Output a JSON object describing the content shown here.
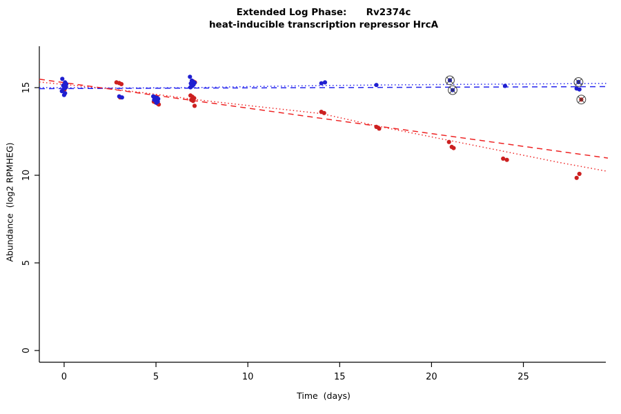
{
  "chart_data": {
    "type": "scatter",
    "title": "Extended Log Phase:      Rv2374c",
    "subtitle": "heat-inducible transcription repressor HrcA",
    "xlabel": "Time  (days)",
    "ylabel": "Abundance  (log2 RPMHEG)",
    "xlim": [
      -1.35,
      29.6
    ],
    "ylim": [
      -0.67,
      17.56
    ],
    "x_ticks": [
      0,
      5,
      10,
      15,
      20,
      25
    ],
    "y_ticks": [
      0,
      5,
      10,
      15
    ],
    "grid": false,
    "legend": "none",
    "colors": {
      "blue_points": "#1f1fd0",
      "red_points": "#cc2020",
      "blue_line": "#2222ee",
      "red_line": "#ee2222",
      "outlier_marker": "#3c3c3c"
    },
    "series": [
      {
        "name": "red",
        "color": "#cc2020",
        "points": [
          [
            -0.02,
            15.15
          ],
          [
            0.1,
            15.05
          ],
          [
            0.02,
            14.9
          ],
          [
            2.85,
            15.3
          ],
          [
            3.0,
            15.26
          ],
          [
            3.12,
            15.2
          ],
          [
            3.05,
            14.44
          ],
          [
            4.88,
            14.2
          ],
          [
            4.98,
            14.16
          ],
          [
            5.08,
            14.1
          ],
          [
            5.15,
            14.04
          ],
          [
            7.02,
            15.36
          ],
          [
            7.12,
            15.3
          ],
          [
            6.88,
            14.55
          ],
          [
            6.98,
            14.48
          ],
          [
            7.08,
            14.4
          ],
          [
            6.92,
            14.3
          ],
          [
            7.02,
            14.24
          ],
          [
            7.1,
            13.96
          ],
          [
            14.0,
            13.62
          ],
          [
            14.15,
            13.55
          ],
          [
            17.0,
            12.76
          ],
          [
            17.15,
            12.66
          ],
          [
            20.95,
            11.9
          ],
          [
            21.1,
            11.62
          ],
          [
            21.2,
            11.55
          ],
          [
            23.9,
            10.95
          ],
          [
            24.1,
            10.88
          ],
          [
            27.9,
            9.85
          ],
          [
            28.05,
            10.08
          ]
        ],
        "outlier_points": [
          [
            28.15,
            14.32
          ]
        ]
      },
      {
        "name": "blue",
        "color": "#1f1fd0",
        "points": [
          [
            -0.1,
            15.5
          ],
          [
            0.05,
            15.3
          ],
          [
            0.12,
            15.2
          ],
          [
            -0.05,
            15.12
          ],
          [
            0.1,
            15.02
          ],
          [
            0.0,
            14.95
          ],
          [
            -0.12,
            14.8
          ],
          [
            0.05,
            14.68
          ],
          [
            0.0,
            14.58
          ],
          [
            3.0,
            14.5
          ],
          [
            3.15,
            14.44
          ],
          [
            4.85,
            14.5
          ],
          [
            4.95,
            14.45
          ],
          [
            5.05,
            14.42
          ],
          [
            5.12,
            14.36
          ],
          [
            4.9,
            14.3
          ],
          [
            5.0,
            14.26
          ],
          [
            5.1,
            14.2
          ],
          [
            5.02,
            14.14
          ],
          [
            6.85,
            15.62
          ],
          [
            6.95,
            15.4
          ],
          [
            7.02,
            15.34
          ],
          [
            7.1,
            15.28
          ],
          [
            6.9,
            15.24
          ],
          [
            7.05,
            15.18
          ],
          [
            6.98,
            15.1
          ],
          [
            6.88,
            15.02
          ],
          [
            14.0,
            15.25
          ],
          [
            14.2,
            15.3
          ],
          [
            17.0,
            15.15
          ],
          [
            24.0,
            15.1
          ],
          [
            27.9,
            14.95
          ],
          [
            28.05,
            14.9
          ]
        ],
        "outlier_points": [
          [
            21.0,
            15.42
          ],
          [
            21.15,
            14.86
          ],
          [
            28.0,
            15.32
          ]
        ]
      }
    ],
    "trend_lines": [
      {
        "name": "blue-dashed",
        "color": "#2222ee",
        "dash": "8,6",
        "points": [
          [
            -1.35,
            14.94
          ],
          [
            29.6,
            15.06
          ]
        ]
      },
      {
        "name": "blue-dotted",
        "color": "#2222ee",
        "dash": "1.5,3.5",
        "points": [
          [
            -1.35,
            15.0
          ],
          [
            3,
            14.98
          ],
          [
            7,
            15.0
          ],
          [
            10,
            15.06
          ],
          [
            14,
            15.12
          ],
          [
            17,
            15.15
          ],
          [
            21,
            15.18
          ],
          [
            24,
            15.2
          ],
          [
            29.6,
            15.24
          ]
        ]
      },
      {
        "name": "red-dashed",
        "color": "#ee2222",
        "dash": "8,6",
        "points": [
          [
            -1.35,
            15.48
          ],
          [
            29.6,
            10.98
          ]
        ]
      },
      {
        "name": "red-dotted",
        "color": "#ee2222",
        "dash": "1.5,3.5",
        "points": [
          [
            -1.35,
            15.32
          ],
          [
            0,
            15.18
          ],
          [
            3,
            14.88
          ],
          [
            5,
            14.62
          ],
          [
            7,
            14.34
          ],
          [
            10,
            13.98
          ],
          [
            14,
            13.52
          ],
          [
            17,
            12.82
          ],
          [
            21,
            11.98
          ],
          [
            24,
            11.35
          ],
          [
            27,
            10.72
          ],
          [
            29.6,
            10.22
          ]
        ]
      }
    ]
  }
}
